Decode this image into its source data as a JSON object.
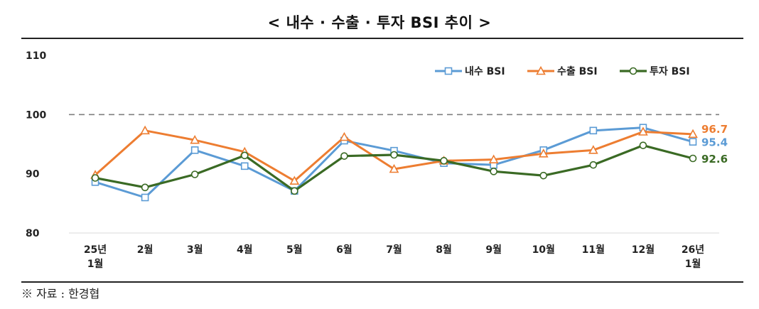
{
  "chart_data": {
    "type": "line",
    "title": "< 내수 · 수출 · 투자 BSI 추이 >",
    "categories": [
      [
        "25년",
        "1월"
      ],
      [
        "2월"
      ],
      [
        "3월"
      ],
      [
        "4월"
      ],
      [
        "5월"
      ],
      [
        "6월"
      ],
      [
        "7월"
      ],
      [
        "8월"
      ],
      [
        "9월"
      ],
      [
        "10월"
      ],
      [
        "11월"
      ],
      [
        "12월"
      ],
      [
        "26년",
        "1월"
      ]
    ],
    "yticks": [
      "80",
      "90",
      "100",
      "110"
    ],
    "ylim": [
      80,
      110
    ],
    "reference_line": 100,
    "series": [
      {
        "name": "내수 BSI",
        "color": "#5b9bd5",
        "marker": "square",
        "values": [
          88.6,
          86.0,
          94.0,
          91.3,
          87.1,
          95.6,
          93.9,
          91.8,
          91.5,
          94.0,
          97.3,
          97.8,
          95.4
        ],
        "end_label": "95.4"
      },
      {
        "name": "수출 BSI",
        "color": "#ed7d31",
        "marker": "triangle",
        "values": [
          89.8,
          97.3,
          95.7,
          93.7,
          88.8,
          96.2,
          90.8,
          92.2,
          92.4,
          93.4,
          94.0,
          97.1,
          96.7
        ],
        "end_label": "96.7"
      },
      {
        "name": "투자 BSI",
        "color": "#3a6a24",
        "marker": "circle",
        "values": [
          89.3,
          87.7,
          89.9,
          93.1,
          87.1,
          93.0,
          93.2,
          92.2,
          90.4,
          89.7,
          91.5,
          94.8,
          92.6
        ],
        "end_label": "92.6"
      }
    ]
  },
  "source": "※ 자료 : 한경협"
}
